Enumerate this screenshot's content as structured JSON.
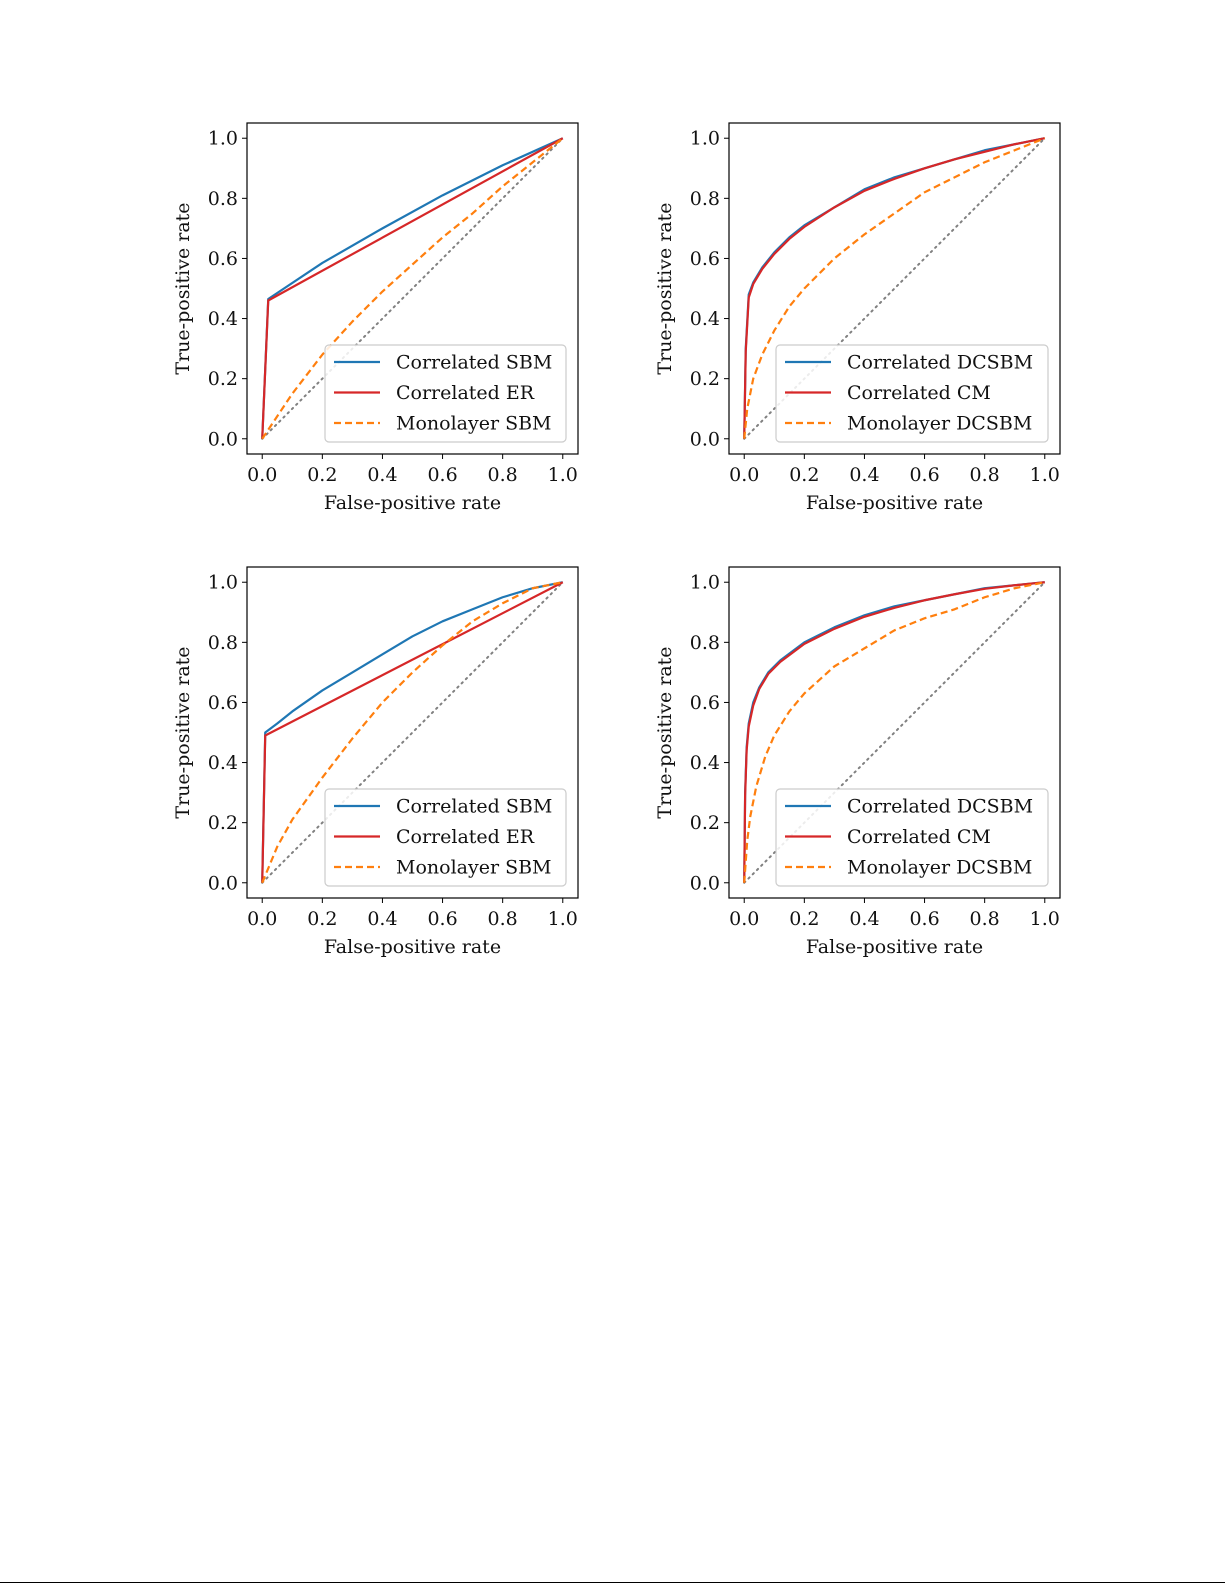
{
  "chart_data": [
    {
      "type": "line",
      "panel": "top-left",
      "xlabel": "False-positive rate",
      "ylabel": "True-positive rate",
      "xlim": [
        0,
        1
      ],
      "ylim": [
        0,
        1
      ],
      "xticks": [
        "0.0",
        "0.2",
        "0.4",
        "0.6",
        "0.8",
        "1.0"
      ],
      "yticks": [
        "0.0",
        "0.2",
        "0.4",
        "0.6",
        "0.8",
        "1.0"
      ],
      "legend_position": "lower-right",
      "series": [
        {
          "name": "Correlated SBM",
          "color": "#1f77b4",
          "style": "solid",
          "x": [
            0,
            0.02,
            0.2,
            0.4,
            0.6,
            0.8,
            1.0
          ],
          "y": [
            0,
            0.465,
            0.585,
            0.7,
            0.81,
            0.91,
            1.0
          ]
        },
        {
          "name": "Correlated ER",
          "color": "#d62728",
          "style": "solid",
          "x": [
            0,
            0.02,
            1.0
          ],
          "y": [
            0,
            0.46,
            1.0
          ]
        },
        {
          "name": "Monolayer SBM",
          "color": "#ff7f0e",
          "style": "dashed",
          "x": [
            0,
            0.1,
            0.2,
            0.3,
            0.4,
            0.5,
            0.6,
            0.7,
            0.8,
            0.9,
            1.0
          ],
          "y": [
            0,
            0.15,
            0.28,
            0.39,
            0.49,
            0.58,
            0.67,
            0.75,
            0.84,
            0.92,
            1.0
          ]
        }
      ]
    },
    {
      "type": "line",
      "panel": "top-right",
      "xlabel": "False-positive rate",
      "ylabel": "True-positive rate",
      "xlim": [
        0,
        1
      ],
      "ylim": [
        0,
        1
      ],
      "xticks": [
        "0.0",
        "0.2",
        "0.4",
        "0.6",
        "0.8",
        "1.0"
      ],
      "yticks": [
        "0.0",
        "0.2",
        "0.4",
        "0.6",
        "0.8",
        "1.0"
      ],
      "legend_position": "lower-right",
      "series": [
        {
          "name": "Correlated DCSBM",
          "color": "#1f77b4",
          "style": "solid",
          "x": [
            0,
            0.005,
            0.015,
            0.03,
            0.06,
            0.1,
            0.15,
            0.2,
            0.3,
            0.4,
            0.5,
            0.6,
            0.7,
            0.8,
            0.9,
            1.0
          ],
          "y": [
            0,
            0.3,
            0.48,
            0.52,
            0.57,
            0.62,
            0.67,
            0.71,
            0.77,
            0.83,
            0.87,
            0.9,
            0.93,
            0.96,
            0.98,
            1.0
          ]
        },
        {
          "name": "Correlated CM",
          "color": "#d62728",
          "style": "solid",
          "x": [
            0,
            0.005,
            0.015,
            0.03,
            0.06,
            0.1,
            0.15,
            0.2,
            0.3,
            0.4,
            0.5,
            0.6,
            0.7,
            0.8,
            0.9,
            1.0
          ],
          "y": [
            0,
            0.29,
            0.47,
            0.515,
            0.565,
            0.615,
            0.665,
            0.705,
            0.77,
            0.825,
            0.865,
            0.9,
            0.93,
            0.955,
            0.98,
            1.0
          ]
        },
        {
          "name": "Monolayer DCSBM",
          "color": "#ff7f0e",
          "style": "dashed",
          "x": [
            0,
            0.01,
            0.03,
            0.06,
            0.1,
            0.15,
            0.2,
            0.3,
            0.4,
            0.5,
            0.6,
            0.7,
            0.8,
            0.9,
            1.0
          ],
          "y": [
            0,
            0.1,
            0.2,
            0.28,
            0.36,
            0.44,
            0.5,
            0.6,
            0.68,
            0.75,
            0.82,
            0.87,
            0.92,
            0.96,
            1.0
          ]
        }
      ]
    },
    {
      "type": "line",
      "panel": "bottom-left",
      "xlabel": "False-positive rate",
      "ylabel": "True-positive rate",
      "xlim": [
        0,
        1
      ],
      "ylim": [
        0,
        1
      ],
      "xticks": [
        "0.0",
        "0.2",
        "0.4",
        "0.6",
        "0.8",
        "1.0"
      ],
      "yticks": [
        "0.0",
        "0.2",
        "0.4",
        "0.6",
        "0.8",
        "1.0"
      ],
      "legend_position": "lower-right",
      "series": [
        {
          "name": "Correlated SBM",
          "color": "#1f77b4",
          "style": "solid",
          "x": [
            0,
            0.01,
            0.05,
            0.1,
            0.2,
            0.3,
            0.4,
            0.5,
            0.6,
            0.7,
            0.8,
            0.9,
            1.0
          ],
          "y": [
            0,
            0.5,
            0.53,
            0.57,
            0.64,
            0.7,
            0.76,
            0.82,
            0.87,
            0.91,
            0.95,
            0.98,
            1.0
          ]
        },
        {
          "name": "Correlated ER",
          "color": "#d62728",
          "style": "solid",
          "x": [
            0,
            0.01,
            1.0
          ],
          "y": [
            0,
            0.49,
            1.0
          ]
        },
        {
          "name": "Monolayer SBM",
          "color": "#ff7f0e",
          "style": "dashed",
          "x": [
            0,
            0.05,
            0.1,
            0.2,
            0.3,
            0.4,
            0.5,
            0.6,
            0.7,
            0.8,
            0.9,
            1.0
          ],
          "y": [
            0,
            0.12,
            0.21,
            0.35,
            0.48,
            0.6,
            0.7,
            0.79,
            0.87,
            0.93,
            0.98,
            1.0
          ]
        }
      ]
    },
    {
      "type": "line",
      "panel": "bottom-right",
      "xlabel": "False-positive rate",
      "ylabel": "True-positive rate",
      "xlim": [
        0,
        1
      ],
      "ylim": [
        0,
        1
      ],
      "xticks": [
        "0.0",
        "0.2",
        "0.4",
        "0.6",
        "0.8",
        "1.0"
      ],
      "yticks": [
        "0.0",
        "0.2",
        "0.4",
        "0.6",
        "0.8",
        "1.0"
      ],
      "legend_position": "lower-right",
      "series": [
        {
          "name": "Correlated DCSBM",
          "color": "#1f77b4",
          "style": "solid",
          "x": [
            0,
            0.003,
            0.008,
            0.015,
            0.03,
            0.05,
            0.08,
            0.12,
            0.2,
            0.3,
            0.4,
            0.5,
            0.6,
            0.7,
            0.8,
            0.9,
            1.0
          ],
          "y": [
            0,
            0.3,
            0.45,
            0.53,
            0.6,
            0.65,
            0.7,
            0.74,
            0.8,
            0.85,
            0.89,
            0.92,
            0.94,
            0.96,
            0.98,
            0.99,
            1.0
          ]
        },
        {
          "name": "Correlated CM",
          "color": "#d62728",
          "style": "solid",
          "x": [
            0,
            0.003,
            0.008,
            0.015,
            0.03,
            0.05,
            0.08,
            0.12,
            0.2,
            0.3,
            0.4,
            0.5,
            0.6,
            0.7,
            0.8,
            0.9,
            1.0
          ],
          "y": [
            0,
            0.29,
            0.44,
            0.52,
            0.59,
            0.645,
            0.695,
            0.735,
            0.795,
            0.845,
            0.885,
            0.915,
            0.94,
            0.96,
            0.978,
            0.99,
            1.0
          ]
        },
        {
          "name": "Monolayer DCSBM",
          "color": "#ff7f0e",
          "style": "dashed",
          "x": [
            0,
            0.01,
            0.02,
            0.04,
            0.07,
            0.1,
            0.15,
            0.2,
            0.3,
            0.4,
            0.5,
            0.6,
            0.7,
            0.8,
            0.9,
            1.0
          ],
          "y": [
            0,
            0.14,
            0.22,
            0.32,
            0.42,
            0.49,
            0.57,
            0.63,
            0.72,
            0.78,
            0.84,
            0.88,
            0.91,
            0.95,
            0.98,
            1.0
          ]
        }
      ]
    }
  ],
  "colors": {
    "diagonal": "#808080",
    "axes": "#000000",
    "legend_border": "#cccccc"
  }
}
